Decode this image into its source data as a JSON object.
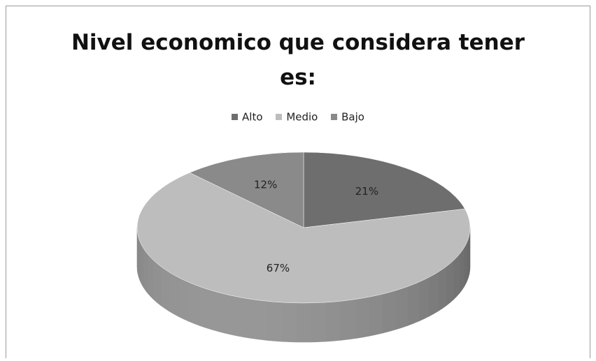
{
  "chart_data": {
    "type": "pie",
    "title": "Nivel economico que considera tener es:",
    "title_lines": [
      "Nivel economico que considera tener",
      "es:"
    ],
    "legend_position": "top",
    "three_d": true,
    "categories": [
      "Alto",
      "Medio",
      "Bajo"
    ],
    "values": [
      21,
      67,
      12
    ],
    "labels": [
      "21%",
      "67%",
      "12%"
    ],
    "colors": [
      "#6e6e6e",
      "#bdbdbd",
      "#8a8a8a"
    ]
  }
}
